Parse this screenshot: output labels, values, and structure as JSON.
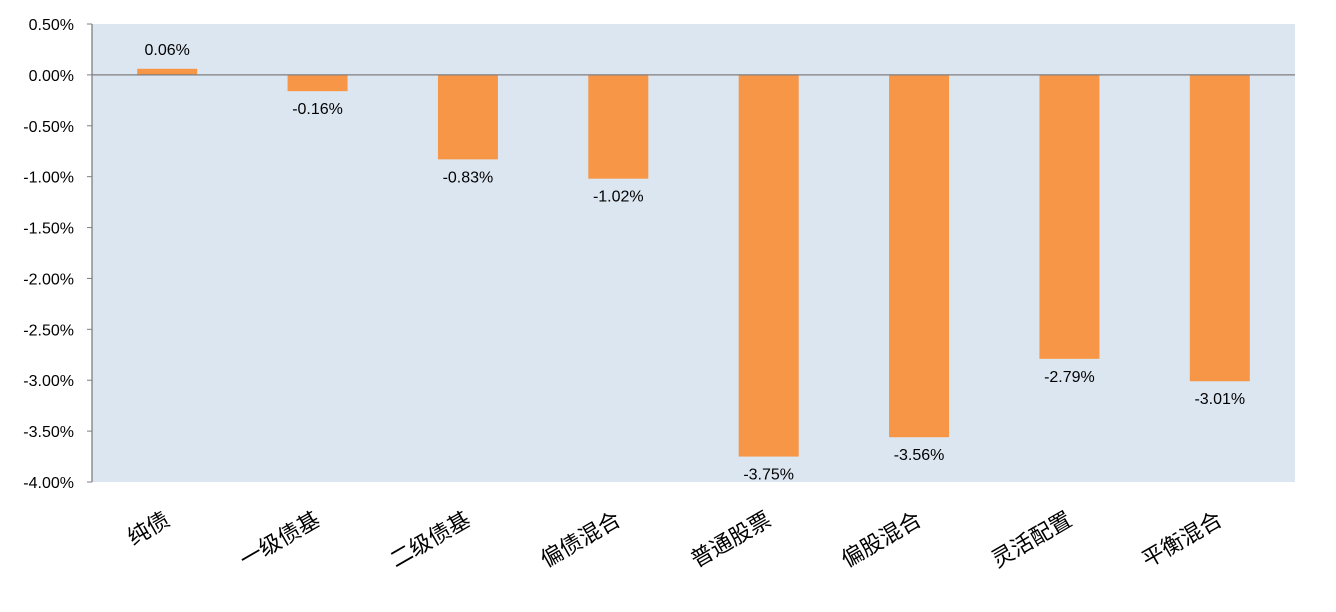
{
  "chart_data": {
    "type": "bar",
    "categories": [
      "纯债",
      "一级债基",
      "二级债基",
      "偏债混合",
      "普通股票",
      "偏股混合",
      "灵活配置",
      "平衡混合"
    ],
    "values": [
      0.06,
      -0.16,
      -0.83,
      -1.02,
      -3.75,
      -3.56,
      -2.79,
      -3.01
    ],
    "data_labels": [
      "0.06%",
      "-0.16%",
      "-0.83%",
      "-1.02%",
      "-3.75%",
      "-3.56%",
      "-2.79%",
      "-3.01%"
    ],
    "ylim": [
      -4.0,
      0.5
    ],
    "y_ticks": [
      0.5,
      0.0,
      -0.5,
      -1.0,
      -1.5,
      -2.0,
      -2.5,
      -3.0,
      -3.5,
      -4.0
    ],
    "y_tick_labels": [
      "0.50%",
      "0.00%",
      "-0.50%",
      "-1.00%",
      "-1.50%",
      "-2.00%",
      "-2.50%",
      "-3.00%",
      "-3.50%",
      "-4.00%"
    ],
    "title": "",
    "xlabel": "",
    "ylabel": "",
    "grid": false,
    "legend": "none",
    "colors": {
      "bar": "#F79646",
      "plot_background": "#DCE6F1",
      "zero_line": "#7F7F7F",
      "axis_line": "#7F7F7F"
    }
  }
}
